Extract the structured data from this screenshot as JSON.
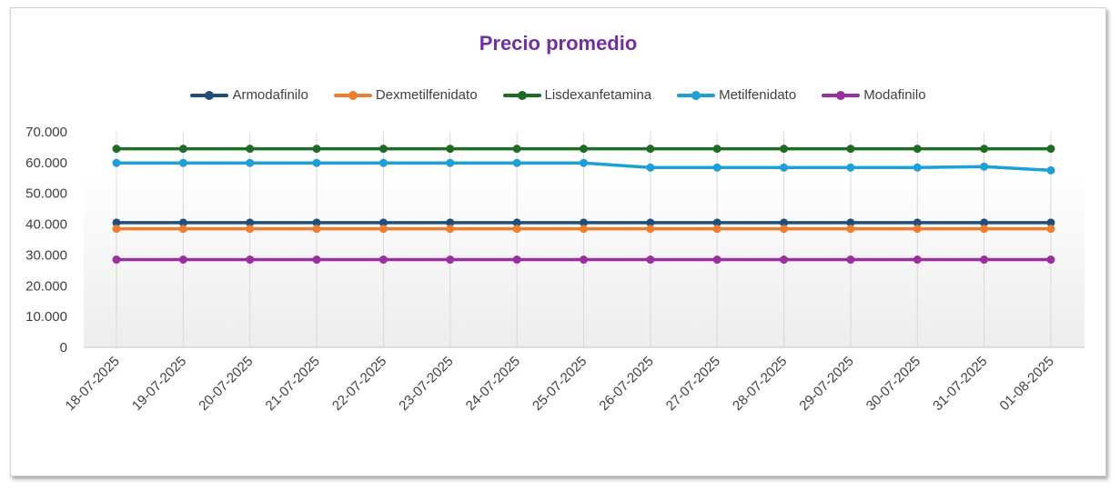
{
  "chart_data": {
    "type": "line",
    "title": "Precio promedio",
    "title_color": "#7030a0",
    "x": [
      "18-07-2025",
      "19-07-2025",
      "20-07-2025",
      "21-07-2025",
      "22-07-2025",
      "23-07-2025",
      "24-07-2025",
      "25-07-2025",
      "26-07-2025",
      "27-07-2025",
      "28-07-2025",
      "29-07-2025",
      "30-07-2025",
      "31-07-2025",
      "01-08-2025"
    ],
    "ylim": [
      0,
      70000
    ],
    "y_ticks": [
      0,
      10000,
      20000,
      30000,
      40000,
      50000,
      60000,
      70000
    ],
    "y_tick_labels": [
      "0",
      "10.000",
      "20.000",
      "30.000",
      "40.000",
      "50.000",
      "60.000",
      "70.000"
    ],
    "grid": "vertical",
    "legend": "top",
    "series": [
      {
        "name": "Armodafinilo",
        "color": "#1f4e79",
        "values": [
          40500,
          40500,
          40500,
          40500,
          40500,
          40500,
          40500,
          40500,
          40500,
          40500,
          40500,
          40500,
          40500,
          40500,
          40500
        ]
      },
      {
        "name": "Dexmetilfenidato",
        "color": "#ed7d31",
        "values": [
          38500,
          38500,
          38500,
          38500,
          38500,
          38500,
          38500,
          38500,
          38500,
          38500,
          38500,
          38500,
          38500,
          38500,
          38500
        ]
      },
      {
        "name": "Lisdexanfetamina",
        "color": "#1e6b24",
        "values": [
          64500,
          64500,
          64500,
          64500,
          64500,
          64500,
          64500,
          64500,
          64500,
          64500,
          64500,
          64500,
          64500,
          64500,
          64500
        ]
      },
      {
        "name": "Metilfenidato",
        "color": "#1ea0d6",
        "values": [
          59900,
          59900,
          59900,
          59900,
          59900,
          59900,
          59900,
          59900,
          58400,
          58400,
          58400,
          58400,
          58400,
          58700,
          57500
        ]
      },
      {
        "name": "Modafinilo",
        "color": "#9b2fa0",
        "values": [
          28500,
          28500,
          28500,
          28500,
          28500,
          28500,
          28500,
          28500,
          28500,
          28500,
          28500,
          28500,
          28500,
          28500,
          28500
        ]
      }
    ]
  }
}
